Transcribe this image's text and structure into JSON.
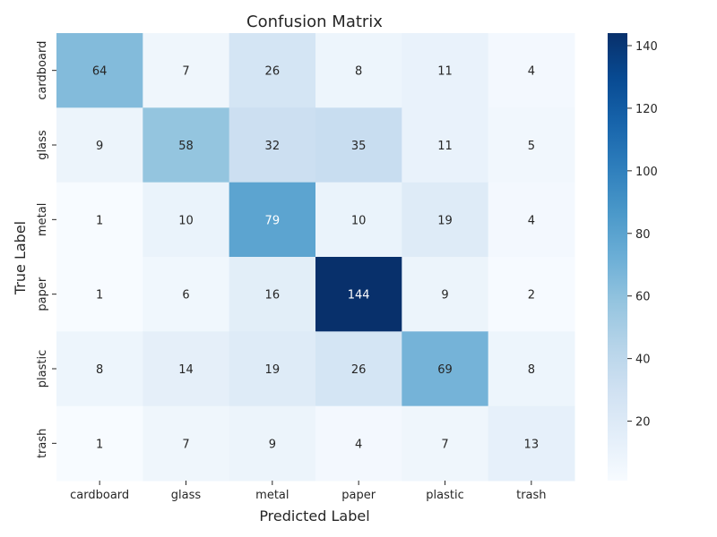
{
  "chart_data": {
    "type": "heatmap",
    "title": "Confusion Matrix",
    "xlabel": "Predicted Label",
    "ylabel": "True Label",
    "x_categories": [
      "cardboard",
      "glass",
      "metal",
      "paper",
      "plastic",
      "trash"
    ],
    "y_categories": [
      "cardboard",
      "glass",
      "metal",
      "paper",
      "plastic",
      "trash"
    ],
    "values": [
      [
        64,
        7,
        26,
        8,
        11,
        4
      ],
      [
        9,
        58,
        32,
        35,
        11,
        5
      ],
      [
        1,
        10,
        79,
        10,
        19,
        4
      ],
      [
        1,
        6,
        16,
        144,
        9,
        2
      ],
      [
        8,
        14,
        19,
        26,
        69,
        8
      ],
      [
        1,
        7,
        9,
        4,
        7,
        13
      ]
    ],
    "colormap": "Blues",
    "color_range": [
      1,
      144
    ],
    "colorbar_ticks": [
      "20",
      "40",
      "60",
      "80",
      "100",
      "120",
      "140"
    ],
    "grid": false
  }
}
